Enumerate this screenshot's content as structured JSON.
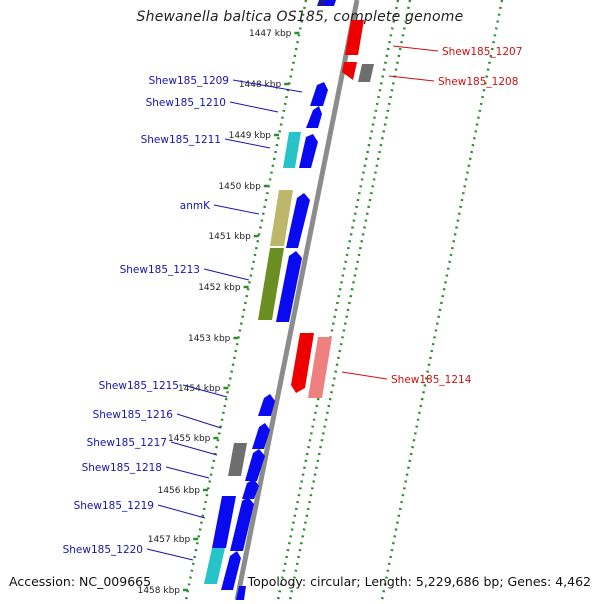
{
  "title": "Shewanella baltica OS185, complete genome",
  "footer": {
    "accession": "Accession: NC_009665",
    "topology": "Topology: circular; Length: 5,229,686 bp; Genes: 4,462"
  },
  "colors": {
    "background": "#ffffff",
    "backbone": "#8c8c8c",
    "ruler_dots": "#2e8b2e",
    "forward_label": "#1515b0",
    "reverse_label": "#cc1111",
    "cds_blue": "#0a0af0",
    "cds_red": "#ee0000",
    "cds_pink": "#ee8080",
    "cds_cyan": "#26c4c8",
    "cds_khaki": "#bdb76b",
    "cds_olive": "#6b8e23",
    "cds_gray": "#6e6e6e"
  },
  "scale_labels": [
    "1447 kbp",
    "1448 kbp",
    "1449 kbp",
    "1450 kbp",
    "1451 kbp",
    "1452 kbp",
    "1453 kbp",
    "1454 kbp",
    "1455 kbp",
    "1456 kbp",
    "1457 kbp",
    "1458 kbp"
  ],
  "left_genes": [
    "Shew185_1209",
    "Shew185_1210",
    "Shew185_1211",
    "anmK",
    "Shew185_1213",
    "Shew185_1215",
    "Shew185_1216",
    "Shew185_1217",
    "Shew185_1218",
    "Shew185_1219",
    "Shew185_1220"
  ],
  "right_genes": [
    "Shew185_1207",
    "Shew185_1208",
    "Shew185_1214"
  ]
}
